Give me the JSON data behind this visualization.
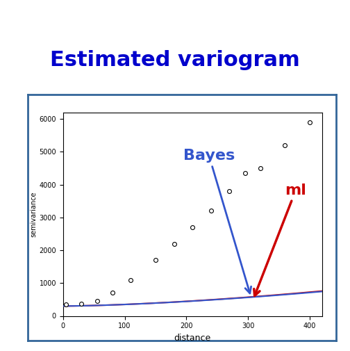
{
  "title": "Estimated variogram",
  "title_color": "#0000CC",
  "title_fontsize": 22,
  "title_fontweight": "bold",
  "xlabel": "distance",
  "ylabel": "semivariance",
  "xlim": [
    0,
    420
  ],
  "ylim": [
    0,
    6200
  ],
  "xticks": [
    0,
    100,
    200,
    300,
    400
  ],
  "yticks": [
    0,
    1000,
    2000,
    3000,
    4000,
    5000,
    6000
  ],
  "scatter_x": [
    5,
    30,
    55,
    80,
    110,
    150,
    180,
    210,
    240,
    270,
    295,
    320,
    360,
    400
  ],
  "scatter_y": [
    350,
    370,
    450,
    700,
    1100,
    1700,
    2200,
    2700,
    3200,
    3800,
    4350,
    4500,
    5200,
    5900
  ],
  "bayes_line_color": "#3355CC",
  "ml_line_color": "#CC0000",
  "scatter_color": "white",
  "scatter_edgecolor": "black",
  "scatter_size": 18,
  "outer_border_color": "#336699",
  "background_color": "white",
  "annotation_bayes_text": "Bayes",
  "annotation_ml_text": "ml",
  "annotation_bayes_color": "#3355CC",
  "annotation_ml_color": "#CC0000",
  "annotation_bayes_fontsize": 16,
  "annotation_ml_fontsize": 16,
  "annotation_bayes_fontweight": "bold",
  "annotation_ml_fontweight": "bold",
  "nugget_b": 300,
  "sill_b": 0.038,
  "alpha_b": 1.55,
  "nugget_ml": 300,
  "sill_ml": 0.037,
  "alpha_ml": 1.56
}
